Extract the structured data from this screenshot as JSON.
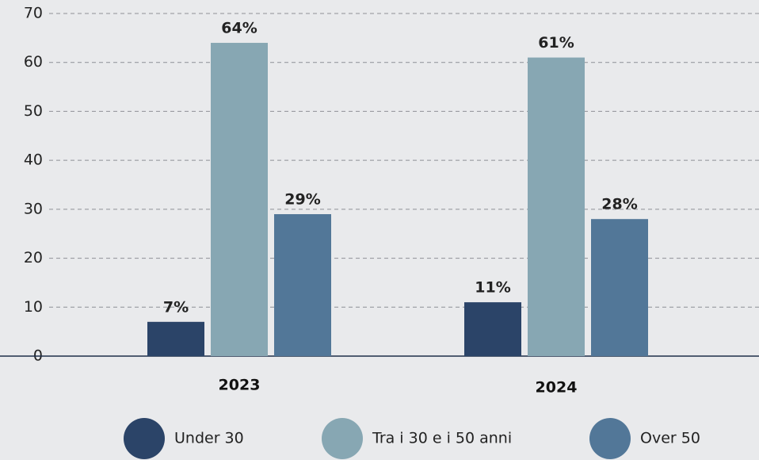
{
  "chart_data": {
    "type": "bar",
    "categories": [
      "2023",
      "2024"
    ],
    "series": [
      {
        "name": "Under 30",
        "color": "#2b4468",
        "values": [
          7,
          11
        ],
        "value_labels": [
          "7%",
          "11%"
        ]
      },
      {
        "name": "Tra i 30 e i 50 anni",
        "color": "#87a7b3",
        "values": [
          64,
          61
        ],
        "value_labels": [
          "64%",
          "61%"
        ]
      },
      {
        "name": "Over 50",
        "color": "#527798",
        "values": [
          29,
          28
        ],
        "value_labels": [
          "29%",
          "28%"
        ]
      }
    ],
    "ylim": [
      0,
      70
    ],
    "yticks": [
      0,
      10,
      20,
      30,
      40,
      50,
      60,
      70
    ],
    "grid": true,
    "legend": "bottom"
  }
}
